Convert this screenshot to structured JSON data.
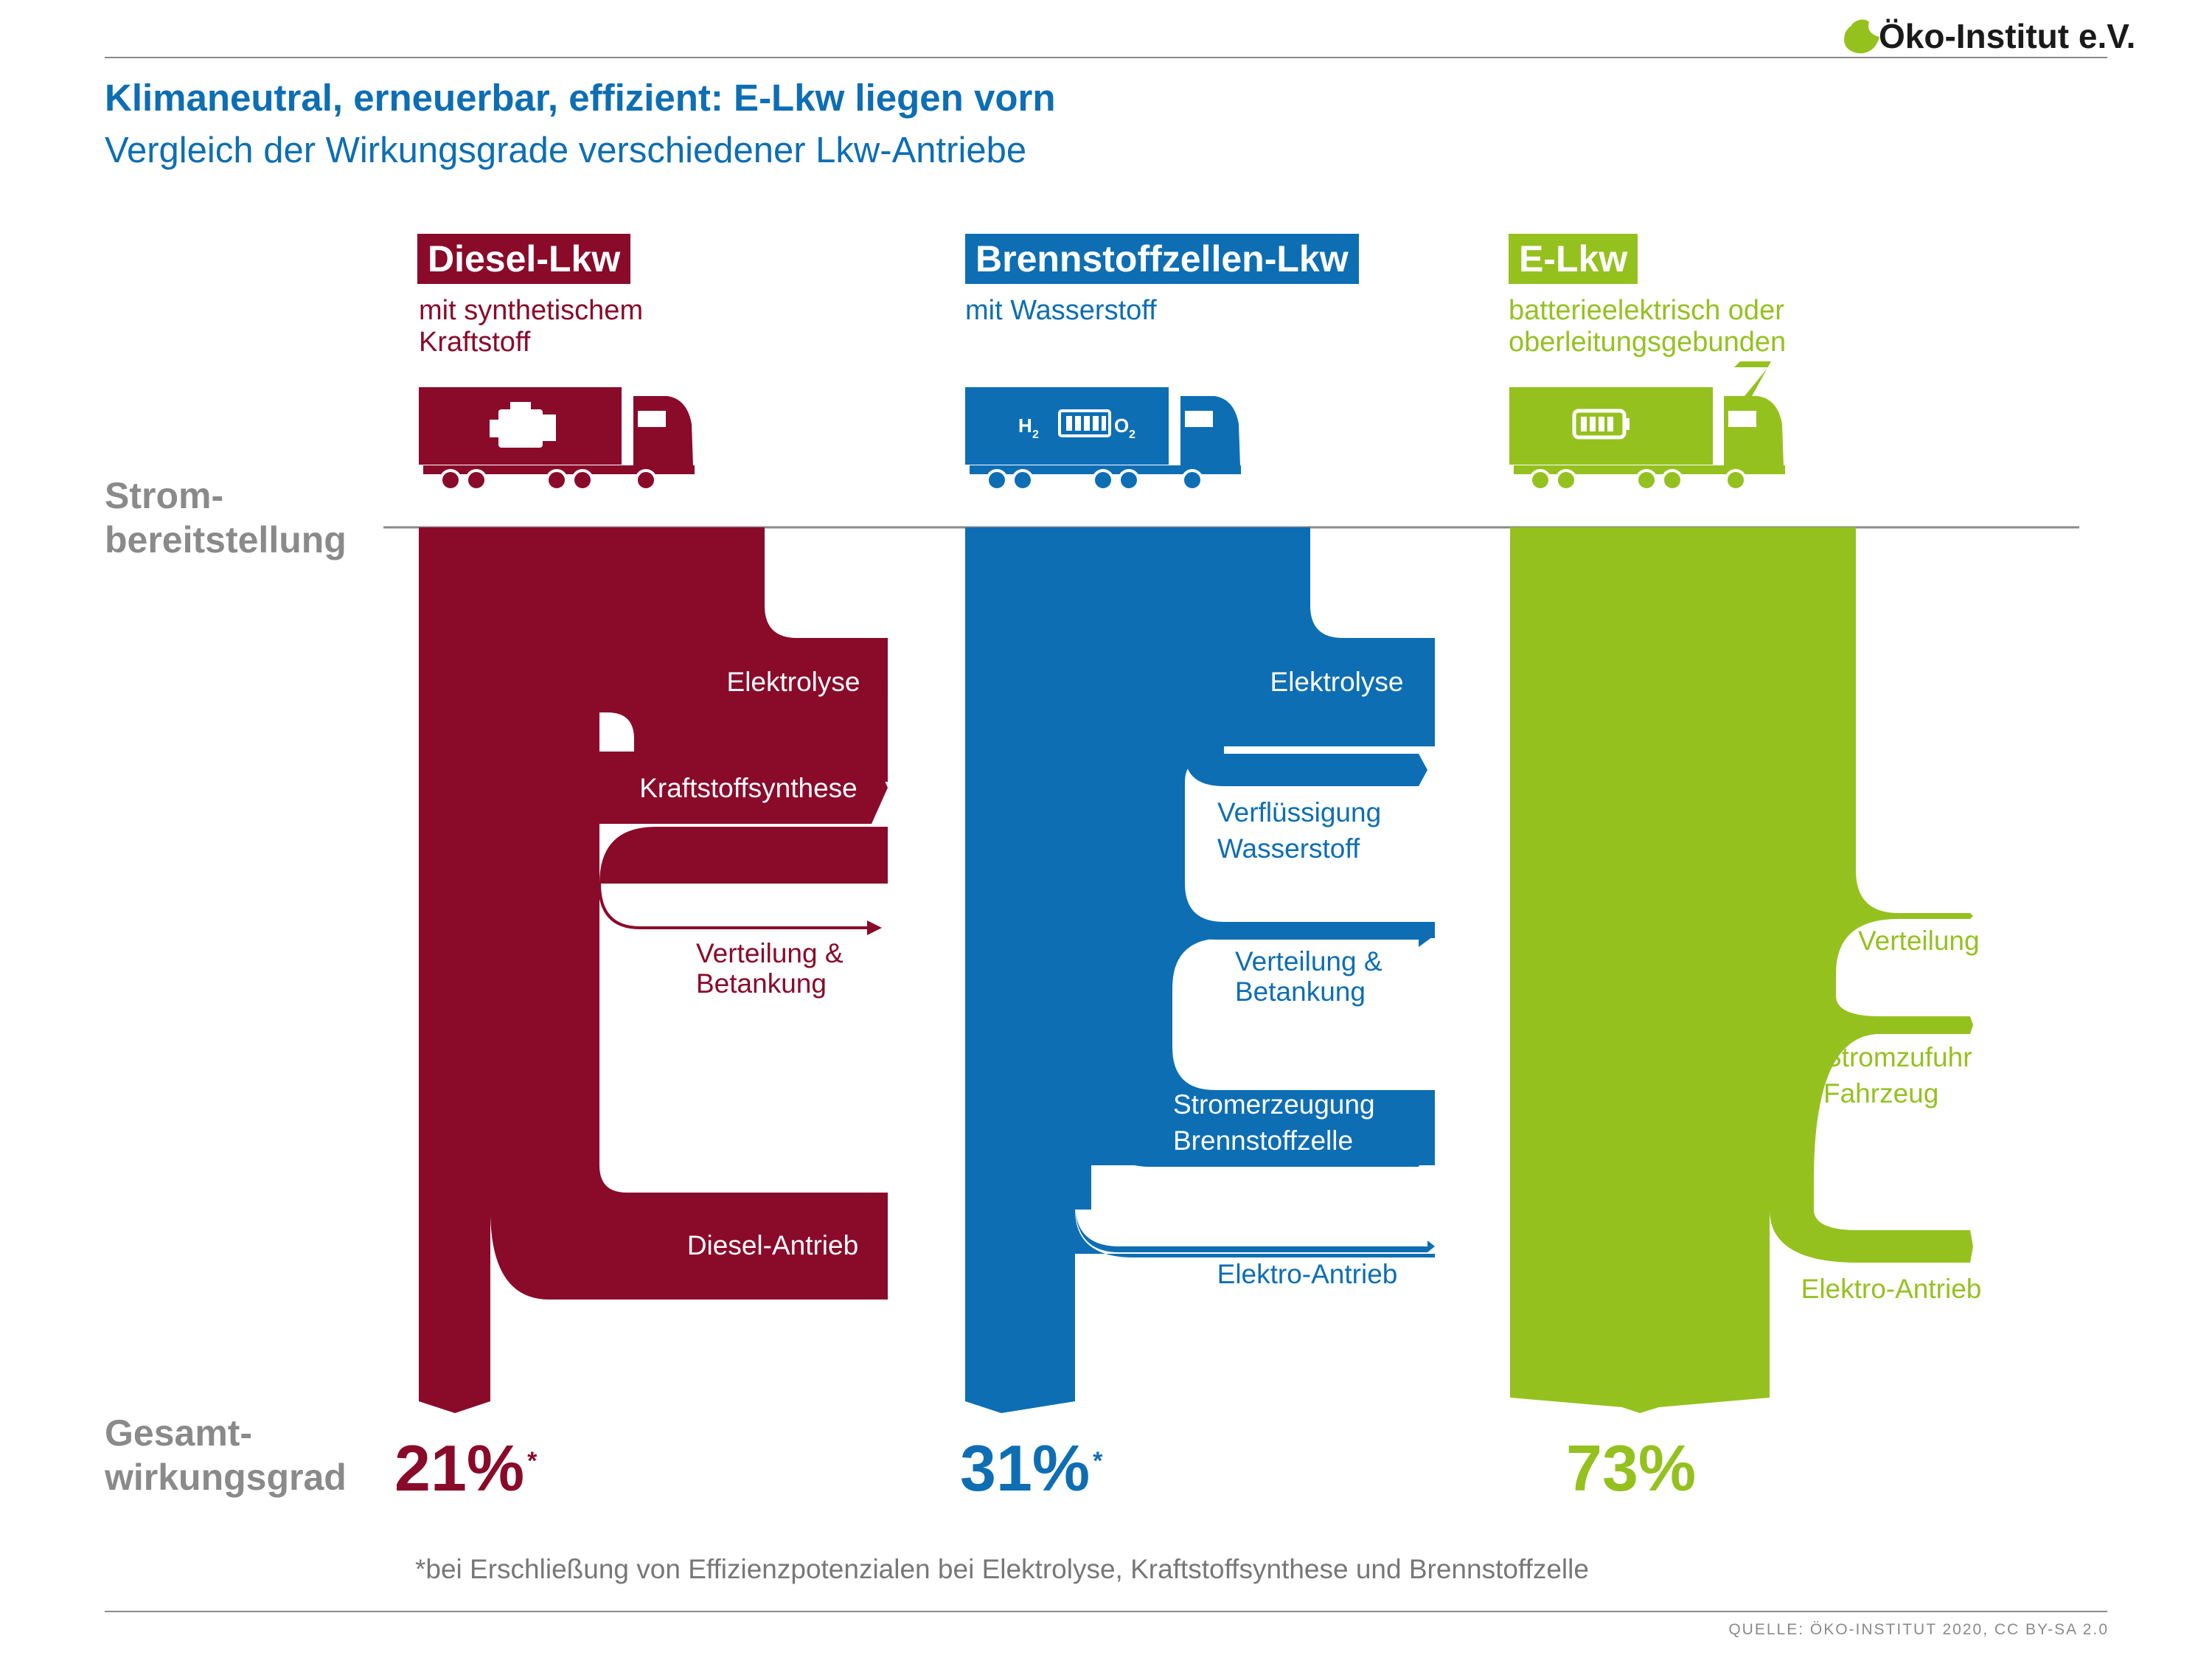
{
  "logo": {
    "text": "Öko-Institut e.V."
  },
  "header": {
    "title": "Klimaneutral, erneuerbar, effizient: E-Lkw liegen vorn",
    "subtitle": "Vergleich der Wirkungsgrade verschiedener Lkw-Antriebe"
  },
  "side_labels": {
    "top": [
      "Strom-",
      "bereitstellung"
    ],
    "bottom": [
      "Gesamt-",
      "wirkungsgrad"
    ]
  },
  "colors": {
    "diesel": "#8a0a2a",
    "fuel_cell": "#0d6eb4",
    "electric": "#95c11f",
    "gray": "#8a8a8a"
  },
  "columns": [
    {
      "title": "Diesel-Lkw",
      "subtitle": "mit synthetischem\nKraftstoff",
      "icon": "engine-icon",
      "total_value": "21%",
      "total_mark": "*",
      "stages": [
        {
          "label": [
            "Elektrolyse"
          ]
        },
        {
          "label": [
            "Kraftstoffsynthese"
          ]
        },
        {
          "label": [
            "Verteilung &",
            "Betankung"
          ]
        },
        {
          "label": [
            "Diesel-Antrieb"
          ]
        }
      ]
    },
    {
      "title": "Brennstoffzellen-Lkw",
      "subtitle": "mit Wasserstoff",
      "icon": "fuel-cell-icon",
      "icon_text": {
        "h": "H",
        "h_sub": "2",
        "o": "O",
        "o_sub": "2"
      },
      "total_value": "31%",
      "total_mark": "*",
      "stages": [
        {
          "label": [
            "Elektrolyse"
          ]
        },
        {
          "label": [
            "Verflüssigung",
            "Wasserstoff"
          ]
        },
        {
          "label": [
            "Verteilung &",
            "Betankung"
          ]
        },
        {
          "label": [
            "Stromerzeugung",
            "Brennstoffzelle"
          ]
        },
        {
          "label": [
            "Elektro-Antrieb"
          ]
        }
      ]
    },
    {
      "title": "E-Lkw",
      "subtitle": "batterieelektrisch oder\noberleitungsgebunden",
      "icon": "battery-icon",
      "total_value": "73%",
      "total_mark": "",
      "stages": [
        {
          "label": [
            "Verteilung"
          ]
        },
        {
          "label": [
            "Stromzufuhr",
            "Fahrzeug"
          ]
        },
        {
          "label": [
            "Elektro-Antrieb"
          ]
        }
      ]
    }
  ],
  "footnote": "*bei Erschließung von Effizienzpotenzialen bei Elektrolyse, Kraftstoffsynthese und Brennstoffzelle",
  "source": "QUELLE: ÖKO-INSTITUT 2020, CC BY-SA 2.0"
}
